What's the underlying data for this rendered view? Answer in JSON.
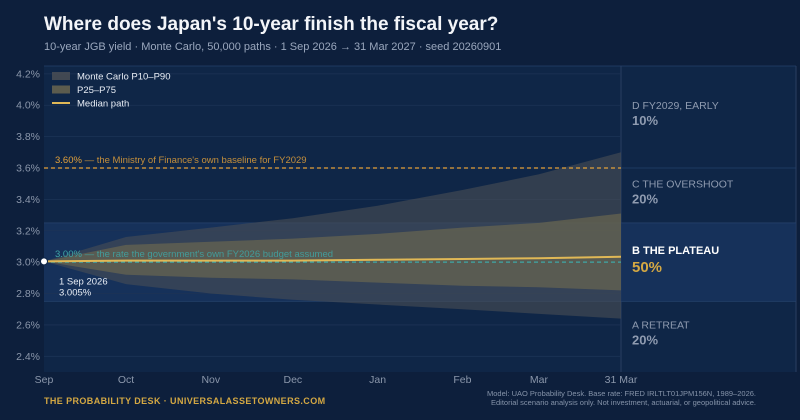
{
  "header": {
    "title": "Where does Japan's 10-year finish the fiscal year?",
    "subtitle": "10-year JGB yield · Monte Carlo, 50,000 paths · 1 Sep 2026 → 31 Mar 2027 · seed 20260901"
  },
  "footer": {
    "brand": "THE PROBABILITY DESK · UNIVERSALASSETOWNERS.COM",
    "note_line1": "Model: UAO Probability Desk. Base rate: FRED IRLTLT01JPM156N, 1989–2026.",
    "note_line2": "Editorial scenario analysis only. Not investment, actuarial, or geopolitical advice."
  },
  "colors": {
    "background": "#0d1f3c",
    "plot_bg": "#0f2647",
    "band_outer": "#4a4f55",
    "band_inner": "#6a6650",
    "median": "#e0b856",
    "mof_line": "#e3a13a",
    "budget_line": "#3fa7a6",
    "highlight": "#d4a843"
  },
  "chart_data": {
    "type": "area",
    "x_ticks": [
      "Sep",
      "Oct",
      "Nov",
      "Dec",
      "Jan",
      "Feb",
      "Mar",
      "31 Mar"
    ],
    "x_tick_dates": [
      "2026-09-01",
      "2026-10-01",
      "2026-11-01",
      "2026-12-01",
      "2027-01-01",
      "2027-02-01",
      "2027-03-01",
      "2027-03-31"
    ],
    "y_ticks": [
      "2.4%",
      "2.6%",
      "2.8%",
      "3.0%",
      "3.2%",
      "3.4%",
      "3.6%",
      "3.8%",
      "4.0%",
      "4.2%"
    ],
    "ylim": [
      2.3,
      4.25
    ],
    "x_dates": [
      "2026-09-01",
      "2026-10-01",
      "2026-11-01",
      "2026-12-01",
      "2027-01-01",
      "2027-02-01",
      "2027-03-01",
      "2027-03-31"
    ],
    "median": [
      3.005,
      3.01,
      3.01,
      3.01,
      3.015,
      3.02,
      3.025,
      3.035
    ],
    "p25": [
      3.005,
      2.92,
      2.9,
      2.89,
      2.87,
      2.85,
      2.84,
      2.82
    ],
    "p75": [
      3.005,
      3.11,
      3.13,
      3.15,
      3.18,
      3.22,
      3.25,
      3.31
    ],
    "p10": [
      3.005,
      2.86,
      2.8,
      2.76,
      2.73,
      2.7,
      2.67,
      2.64
    ],
    "p90": [
      3.005,
      3.16,
      3.22,
      3.28,
      3.36,
      3.46,
      3.56,
      3.7
    ],
    "legend": [
      {
        "label": "Monte Carlo P10–P90",
        "kind": "outer"
      },
      {
        "label": "P25–P75",
        "kind": "inner"
      },
      {
        "label": "Median path",
        "kind": "line"
      }
    ],
    "legend_position": "top-left",
    "reference_lines": [
      {
        "y": 3.6,
        "label_value": "3.60%",
        "label_text": " — the Ministry of Finance's own baseline for FY2029",
        "color": "#e3a13a"
      },
      {
        "y": 3.0,
        "label_value": "3.00%",
        "label_text": " — the rate the government's own FY2026 budget assumed",
        "color": "#3fa7a6"
      }
    ],
    "start_point": {
      "date_label": "1 Sep 2026",
      "value_label": "3.005%",
      "y": 3.005
    },
    "scenarios": [
      {
        "letter": "D",
        "name": "FY2029, EARLY",
        "prob": "10%",
        "y_from": 3.6,
        "y_to": 4.25,
        "highlight": false
      },
      {
        "letter": "C",
        "name": "THE OVERSHOOT",
        "prob": "20%",
        "y_from": 3.25,
        "y_to": 3.6,
        "highlight": false
      },
      {
        "letter": "B",
        "name": "THE PLATEAU",
        "prob": "50%",
        "y_from": 2.75,
        "y_to": 3.25,
        "highlight": true
      },
      {
        "letter": "A",
        "name": "RETREAT",
        "prob": "20%",
        "y_from": 2.3,
        "y_to": 2.75,
        "highlight": false
      }
    ],
    "grid": true
  }
}
